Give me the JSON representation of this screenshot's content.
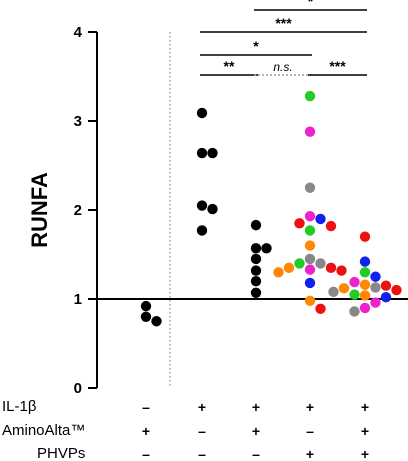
{
  "chart_data": {
    "type": "scatter",
    "ylabel": "RUNFA",
    "ylim": [
      0,
      4
    ],
    "yticks": [
      0,
      1,
      2,
      3,
      4
    ],
    "reference_line_y": 1,
    "groups": [
      {
        "symbols": [
          "–",
          "+",
          "–"
        ],
        "points": [
          {
            "y": 0.75,
            "color": "#000000"
          },
          {
            "y": 0.92,
            "color": "#000000"
          },
          {
            "y": 0.8,
            "color": "#000000"
          }
        ]
      },
      {
        "symbols": [
          "+",
          "–",
          "–"
        ],
        "points": [
          {
            "y": 3.09,
            "color": "#000000"
          },
          {
            "y": 2.64,
            "color": "#000000"
          },
          {
            "y": 2.64,
            "color": "#000000"
          },
          {
            "y": 2.05,
            "color": "#000000"
          },
          {
            "y": 2.01,
            "color": "#000000"
          },
          {
            "y": 1.77,
            "color": "#000000"
          }
        ]
      },
      {
        "symbols": [
          "+",
          "+",
          "–"
        ],
        "points": [
          {
            "y": 1.83,
            "color": "#000000"
          },
          {
            "y": 1.57,
            "color": "#000000"
          },
          {
            "y": 1.57,
            "color": "#000000"
          },
          {
            "y": 1.45,
            "color": "#000000"
          },
          {
            "y": 1.32,
            "color": "#000000"
          },
          {
            "y": 1.2,
            "color": "#000000"
          },
          {
            "y": 1.07,
            "color": "#000000"
          }
        ]
      },
      {
        "symbols": [
          "+",
          "–",
          "+"
        ],
        "points": [
          {
            "y": 3.28,
            "color": "#22cc22"
          },
          {
            "y": 2.88,
            "color": "#ee22cc"
          },
          {
            "y": 2.25,
            "color": "#888888"
          },
          {
            "y": 1.93,
            "color": "#ee22cc"
          },
          {
            "y": 1.9,
            "color": "#1122ee"
          },
          {
            "y": 1.85,
            "color": "#ee1111"
          },
          {
            "y": 1.82,
            "color": "#ee1111"
          },
          {
            "y": 1.77,
            "color": "#22cc22"
          },
          {
            "y": 1.6,
            "color": "#ff8800"
          },
          {
            "y": 1.45,
            "color": "#888888"
          },
          {
            "y": 1.4,
            "color": "#888888"
          },
          {
            "y": 1.4,
            "color": "#22cc22"
          },
          {
            "y": 1.35,
            "color": "#ee1111"
          },
          {
            "y": 1.35,
            "color": "#ff8800"
          },
          {
            "y": 1.33,
            "color": "#ee22cc"
          },
          {
            "y": 1.32,
            "color": "#ee1111"
          },
          {
            "y": 1.3,
            "color": "#ff8800"
          },
          {
            "y": 1.18,
            "color": "#1122ee"
          },
          {
            "y": 0.98,
            "color": "#ff8800"
          },
          {
            "y": 0.89,
            "color": "#ee1111"
          }
        ]
      },
      {
        "symbols": [
          "+",
          "+",
          "+"
        ],
        "points": [
          {
            "y": 1.7,
            "color": "#ee1111"
          },
          {
            "y": 1.42,
            "color": "#1122ee"
          },
          {
            "y": 1.3,
            "color": "#22cc22"
          },
          {
            "y": 1.25,
            "color": "#1122ee"
          },
          {
            "y": 1.19,
            "color": "#ee22cc"
          },
          {
            "y": 1.16,
            "color": "#ff8800"
          },
          {
            "y": 1.15,
            "color": "#ee1111"
          },
          {
            "y": 1.13,
            "color": "#888888"
          },
          {
            "y": 1.12,
            "color": "#ff8800"
          },
          {
            "y": 1.1,
            "color": "#ee1111"
          },
          {
            "y": 1.08,
            "color": "#888888"
          },
          {
            "y": 1.05,
            "color": "#22cc22"
          },
          {
            "y": 1.04,
            "color": "#ff8800"
          },
          {
            "y": 1.02,
            "color": "#1122ee"
          },
          {
            "y": 0.96,
            "color": "#ee22cc"
          },
          {
            "y": 0.9,
            "color": "#ee22cc"
          },
          {
            "y": 0.86,
            "color": "#888888"
          }
        ]
      }
    ],
    "row_labels": [
      "IL-1β",
      "AminoAlta™",
      "PHVPs"
    ],
    "significance": [
      {
        "from_group": 1,
        "to_group": 2,
        "label": "**"
      },
      {
        "from_group": 2,
        "to_group": 3,
        "label": "n.s."
      },
      {
        "from_group": 3,
        "to_group": 4,
        "label": "***"
      },
      {
        "from_group": 1,
        "to_group": 3,
        "label": "*"
      },
      {
        "from_group": 1,
        "to_group": 4,
        "label": "***"
      },
      {
        "from_group": 2,
        "to_group": 4,
        "label": "*"
      }
    ]
  }
}
